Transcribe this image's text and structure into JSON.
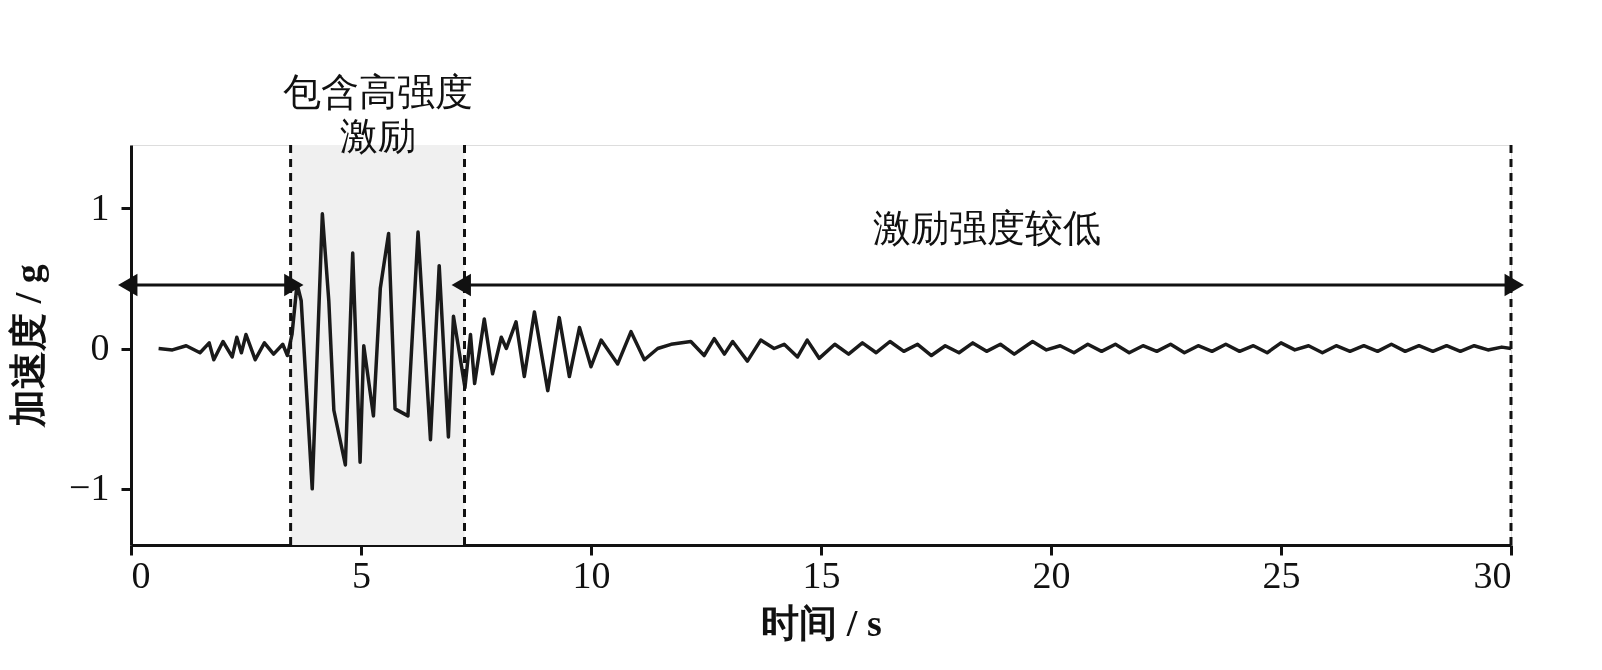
{
  "chart_data": {
    "type": "line",
    "xlabel": "时间 / s",
    "ylabel": "加速度 / g",
    "xlim": [
      0,
      30
    ],
    "xticks": [
      0,
      5,
      10,
      15,
      20,
      25,
      30
    ],
    "ylim": [
      -1.4,
      1.45
    ],
    "yticks": [
      {
        "value": -1,
        "label": "−1"
      },
      0,
      1
    ],
    "grid": false,
    "line_style": "solid",
    "marker": "none",
    "series": [
      {
        "color": "#1a1a1a",
        "x": [
          0.6,
          0.9,
          1.2,
          1.5,
          1.7,
          1.8,
          2.0,
          2.2,
          2.3,
          2.4,
          2.5,
          2.7,
          2.9,
          3.1,
          3.3,
          3.4,
          3.5,
          3.61,
          3.7,
          3.94,
          4.16,
          4.3,
          4.41,
          4.66,
          4.82,
          4.98,
          5.06,
          5.27,
          5.42,
          5.6,
          5.74,
          6.02,
          6.24,
          6.51,
          6.7,
          6.9,
          7.01,
          7.26,
          7.38,
          7.47,
          7.68,
          7.86,
          8.05,
          8.16,
          8.37,
          8.55,
          8.77,
          9.06,
          9.31,
          9.53,
          9.75,
          10.0,
          10.22,
          10.58,
          10.87,
          11.16,
          11.45,
          11.74,
          12.17,
          12.46,
          12.68,
          12.9,
          13.08,
          13.4,
          13.69,
          13.98,
          14.2,
          14.49,
          14.7,
          14.96,
          15.3,
          15.6,
          15.9,
          16.2,
          16.5,
          16.8,
          17.1,
          17.4,
          17.7,
          18.0,
          18.3,
          18.6,
          18.9,
          19.2,
          19.6,
          19.9,
          20.2,
          20.5,
          20.8,
          21.1,
          21.4,
          21.7,
          22.0,
          22.3,
          22.6,
          22.9,
          23.2,
          23.5,
          23.8,
          24.1,
          24.4,
          24.7,
          25.0,
          25.3,
          25.6,
          25.9,
          26.2,
          26.5,
          26.8,
          27.1,
          27.4,
          27.7,
          28.0,
          28.3,
          28.6,
          28.9,
          29.2,
          29.5,
          29.8,
          30.0
        ],
        "values": [
          0,
          -0.01,
          0.02,
          -0.03,
          0.04,
          -0.08,
          0.05,
          -0.06,
          0.08,
          -0.03,
          0.1,
          -0.08,
          0.04,
          -0.04,
          0.03,
          -0.05,
          0.1,
          0.46,
          0.34,
          -1.0,
          0.96,
          0.34,
          -0.44,
          -0.83,
          0.68,
          -0.81,
          0.02,
          -0.48,
          0.43,
          0.82,
          -0.43,
          -0.48,
          0.83,
          -0.65,
          0.59,
          -0.63,
          0.23,
          -0.28,
          0.1,
          -0.25,
          0.21,
          -0.18,
          0.08,
          0,
          0.19,
          -0.2,
          0.26,
          -0.3,
          0.22,
          -0.2,
          0.15,
          -0.13,
          0.06,
          -0.11,
          0.12,
          -0.08,
          0,
          0.03,
          0.05,
          -0.05,
          0.07,
          -0.04,
          0.05,
          -0.09,
          0.06,
          0,
          0.03,
          -0.06,
          0.06,
          -0.07,
          0.03,
          -0.04,
          0.04,
          -0.03,
          0.05,
          -0.02,
          0.03,
          -0.05,
          0.02,
          -0.03,
          0.04,
          -0.02,
          0.03,
          -0.04,
          0.05,
          -0.01,
          0.02,
          -0.03,
          0.03,
          -0.02,
          0.03,
          -0.03,
          0.02,
          -0.02,
          0.03,
          -0.03,
          0.02,
          -0.02,
          0.03,
          -0.02,
          0.02,
          -0.03,
          0.04,
          -0.01,
          0.02,
          -0.03,
          0.02,
          -0.02,
          0.02,
          -0.02,
          0.03,
          -0.02,
          0.02,
          -0.02,
          0.02,
          -0.02,
          0.02,
          -0.01,
          0.01,
          0
        ]
      }
    ],
    "bands": [
      {
        "axis": "x",
        "from": 3.47,
        "to": 7.25,
        "label": "包含高强度激励",
        "color": "#f0f0f0"
      }
    ],
    "ref_lines": [
      {
        "axis": "x",
        "value": 3.47,
        "line_style": "dashed"
      },
      {
        "axis": "x",
        "value": 7.25,
        "line_style": "dashed"
      },
      {
        "axis": "x",
        "value": 30,
        "line_style": "dashed"
      }
    ],
    "annotations": [
      "激励强度较低"
    ]
  }
}
